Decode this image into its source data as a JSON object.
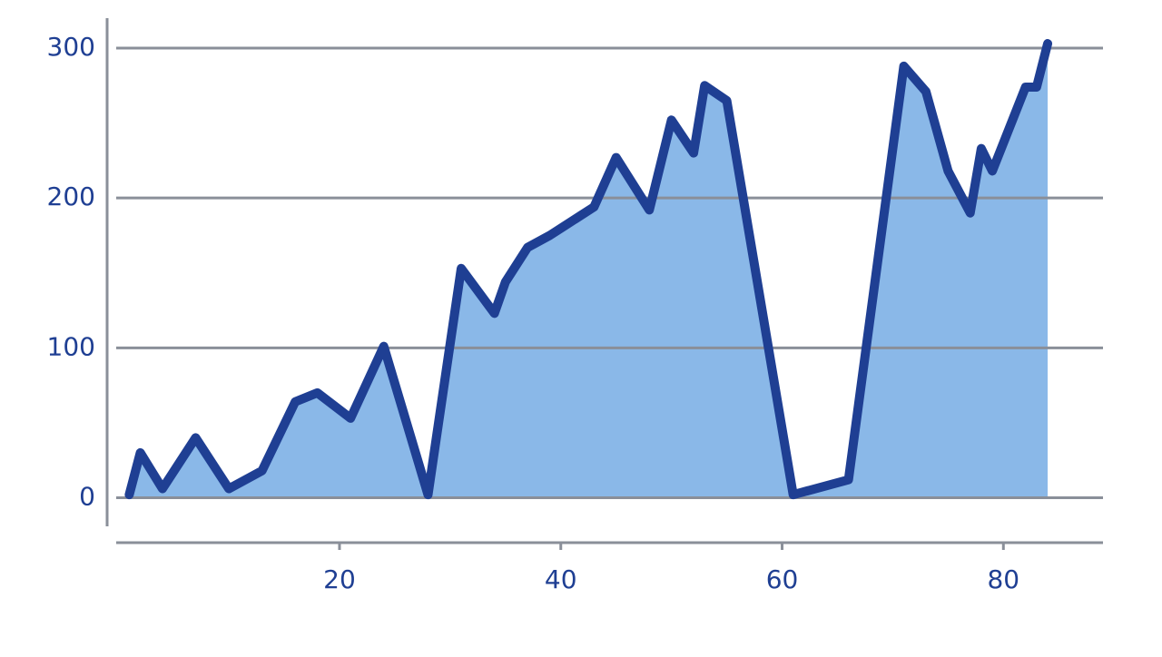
{
  "chart_data": {
    "type": "area",
    "x": [
      1,
      2,
      4,
      7,
      10,
      13,
      16,
      18,
      21,
      24,
      28,
      31,
      34,
      35,
      37,
      39,
      43,
      45,
      48,
      50,
      52,
      53,
      55,
      61,
      66,
      71,
      73,
      75,
      77,
      78,
      79,
      82,
      83,
      84
    ],
    "series": [
      {
        "color": "#1f3f93",
        "fill": "#8ab8e8",
        "values": [
          2,
          30,
          6,
          40,
          6,
          18,
          64,
          70,
          53,
          101,
          2,
          153,
          123,
          144,
          167,
          175,
          194,
          227,
          192,
          252,
          230,
          275,
          265,
          2,
          12,
          288,
          271,
          218,
          190,
          233,
          218,
          274,
          274,
          303
        ]
      }
    ],
    "xlim": [
      -1,
      89
    ],
    "ylim": [
      -30,
      320
    ],
    "xticks": [
      20,
      40,
      60,
      80
    ],
    "yticks": [
      0,
      100,
      200,
      300
    ],
    "grid": true
  }
}
